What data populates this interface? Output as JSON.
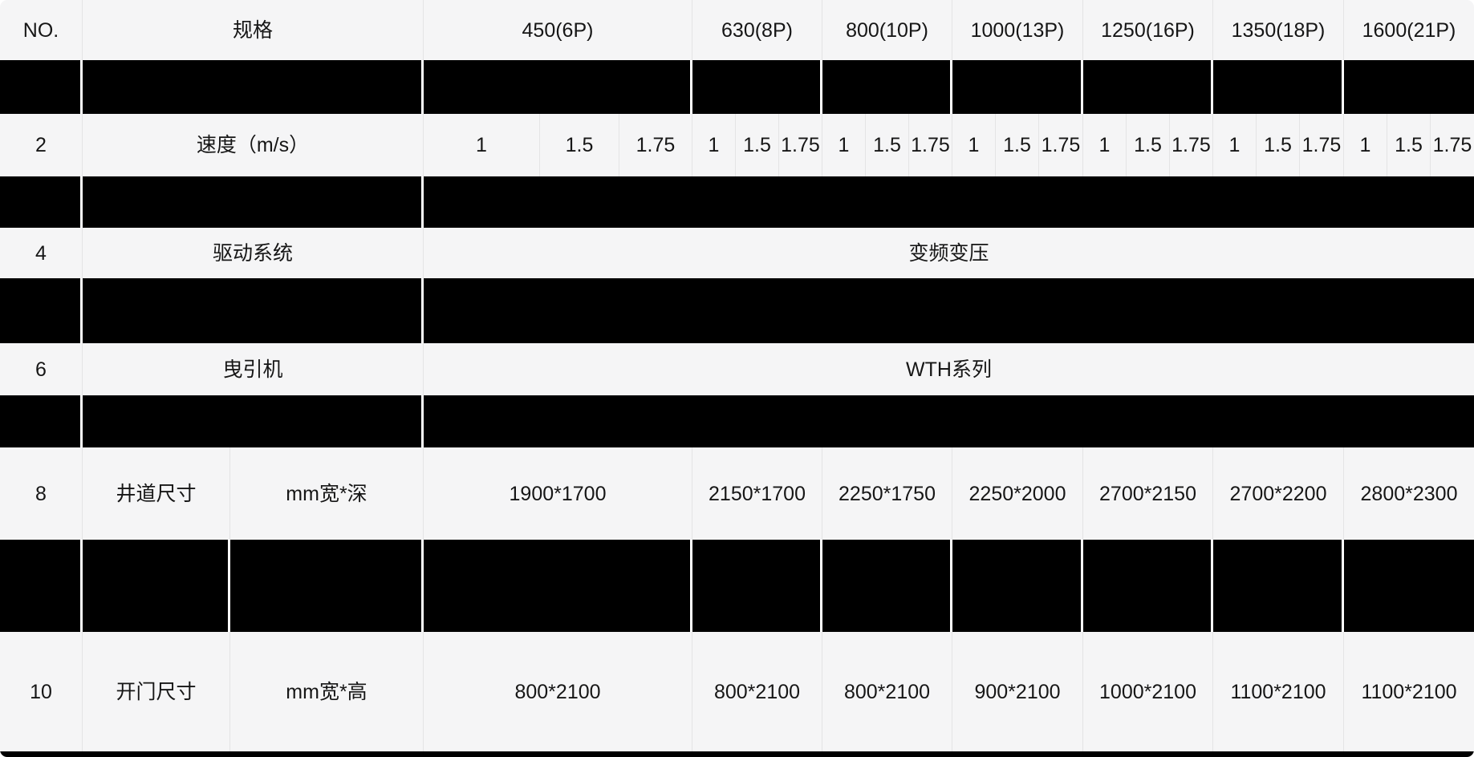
{
  "table": {
    "header": {
      "no": "NO.",
      "spec": "规格",
      "capacities": [
        "450(6P)",
        "630(8P)",
        "800(10P)",
        "1000(13P)",
        "1250(16P)",
        "1350(18P)",
        "1600(21P)"
      ]
    },
    "speed_row": {
      "no": "2",
      "label": "速度（m/s）",
      "steps": [
        "1",
        "1.5",
        "1.75"
      ]
    },
    "drive_row": {
      "no": "4",
      "label": "驱动系统",
      "value": "变频变压"
    },
    "traction_row": {
      "no": "6",
      "label": "曳引机",
      "value": "WTH系列"
    },
    "shaft_row": {
      "no": "8",
      "label": "井道尺寸",
      "unit": "mm宽*深",
      "values": [
        "1900*1700",
        "2150*1700",
        "2250*1750",
        "2250*2000",
        "2700*2150",
        "2700*2200",
        "2800*2300"
      ]
    },
    "door_row": {
      "no": "10",
      "label": "开门尺寸",
      "unit": "mm宽*高",
      "values": [
        "800*2100",
        "800*2100",
        "800*2100",
        "900*2100",
        "1000*2100",
        "1100*2100",
        "1100*2100"
      ]
    }
  },
  "colors": {
    "cell_bg": "#f5f5f6",
    "redaction": "#000000",
    "divider": "#e4e4e5",
    "gap": "#ffffff",
    "text": "#161616"
  }
}
